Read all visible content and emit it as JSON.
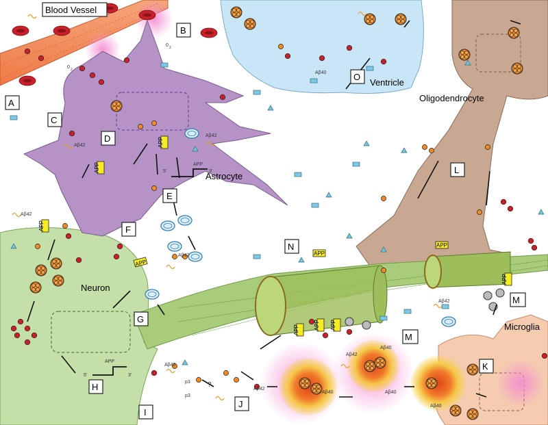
{
  "labels": {
    "blood_vessel": "Blood Vessel",
    "ventricle": "Ventricle",
    "oligodendrocyte": "Oligodendrocyte",
    "astrocyte": "Astrocyte",
    "neuron": "Neuron",
    "microglia": "Microglia",
    "o2_a": "0",
    "o2_b": "0",
    "o2_sub": "2",
    "app_gene_top": "APP",
    "app_gene_bottom": "APP",
    "five_prime": "5'",
    "three_prime": "3'",
    "question": "?",
    "ab42": "Aβ42",
    "ab40": "Aβ40",
    "app_tag": "APP",
    "p3": "p3"
  },
  "panels": [
    "A",
    "B",
    "C",
    "D",
    "E",
    "F",
    "G",
    "H",
    "I",
    "J",
    "K",
    "L",
    "M",
    "M",
    "N",
    "O"
  ],
  "colors": {
    "astrocyte": "#b593c7",
    "neuron": "#c4dfa8",
    "axon": "#9fc46a",
    "oligodendrocyte": "#c8a892",
    "ventricle": "#c9e6f6",
    "vessel": "#f28b5b",
    "plaque_pink": "#f48ad0",
    "plaque_orange": "#f0782a",
    "plaque_yellow": "#f6d34a",
    "oligomer": "#f08a24",
    "red_cell": "#c8202a",
    "app_tag": "#f7ec24"
  },
  "icons": [
    "red-blood-cell-icon",
    "oligomer-icon",
    "monomer-icon",
    "receptor-icon",
    "vesicle-icon",
    "triangle-icon",
    "rectangle-icon"
  ]
}
